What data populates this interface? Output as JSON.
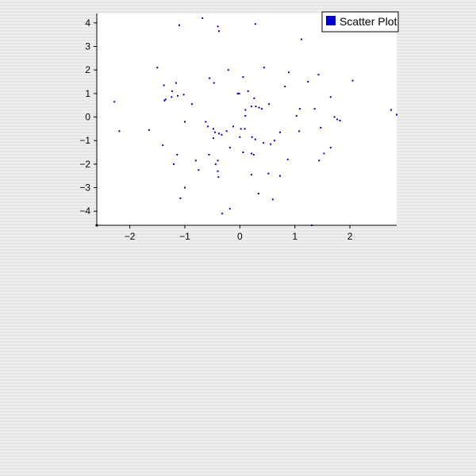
{
  "chart_data": {
    "type": "scatter",
    "title": "",
    "xlabel": "",
    "ylabel": "",
    "xlim": [
      -2.6,
      2.85
    ],
    "ylim": [
      -4.6,
      4.4
    ],
    "xticks": [
      -2,
      -1,
      0,
      1,
      2
    ],
    "yticks": [
      -4,
      -3,
      -2,
      -1,
      0,
      1,
      2,
      3,
      4
    ],
    "xtick_labels": [
      "−2",
      "−1",
      "0",
      "1",
      "2"
    ],
    "ytick_labels": [
      "−4",
      "−3",
      "−2",
      "−1",
      "0",
      "1",
      "2",
      "3",
      "4"
    ],
    "grid": false,
    "legend_position": "top-right",
    "series": [
      {
        "name": "Scatter Plot",
        "color": "#0000cc",
        "x": [
          -0.68,
          -0.4,
          -1.1,
          0.28,
          -0.38,
          1.12,
          -1.5,
          -0.21,
          0.44,
          -0.04,
          0.06,
          -0.55,
          0.89,
          1.43,
          2.05,
          -0.47,
          -1.16,
          1.24,
          -1.38,
          -1.23,
          0.82,
          0.15,
          -0.01,
          0.26,
          -1.13,
          1.65,
          -1.02,
          -1.24,
          -1.37,
          -1.35,
          -2.28,
          -0.87,
          0.21,
          0.35,
          0.53,
          1.09,
          1.36,
          0.1,
          0.1,
          0.4,
          0.29,
          1.03,
          2.75,
          2.85,
          1.72,
          -1.0,
          1.77,
          1.82,
          -0.62,
          1.47,
          -0.58,
          -0.12,
          -1.65,
          -0.48,
          -0.24,
          0.02,
          0.09,
          0.73,
          -0.45,
          -0.38,
          1.08,
          -2.19,
          -0.33,
          0.0,
          -0.48,
          0.22,
          0.28,
          0.63,
          0.43,
          0.56,
          -1.4,
          1.65,
          -0.18,
          -1.14,
          -0.56,
          -0.4,
          0.06,
          0.21,
          0.87,
          1.53,
          1.44,
          0.25,
          -0.44,
          -1.2,
          -0.8,
          -0.75,
          -0.4,
          0.52,
          0.73,
          0.21,
          -0.39,
          -1.0,
          -1.08,
          0.34,
          0.6,
          -0.18,
          -0.32,
          1.31
        ],
        "y": [
          4.2,
          3.85,
          3.9,
          3.95,
          3.65,
          3.3,
          2.1,
          2.0,
          2.1,
          1.0,
          1.7,
          1.65,
          1.9,
          1.8,
          1.55,
          1.45,
          1.45,
          1.5,
          1.35,
          1.1,
          1.3,
          1.1,
          1.0,
          0.8,
          0.9,
          0.85,
          0.95,
          0.85,
          0.7,
          0.75,
          0.65,
          0.55,
          0.45,
          0.4,
          0.55,
          0.35,
          0.35,
          0.3,
          0.05,
          0.35,
          0.45,
          0.05,
          0.3,
          0.1,
          0.0,
          -0.2,
          -0.1,
          -0.15,
          -0.2,
          -0.45,
          -0.4,
          -0.4,
          -0.55,
          -0.5,
          -0.6,
          -0.5,
          -0.5,
          -0.65,
          -0.65,
          -0.7,
          -0.6,
          -0.6,
          -0.75,
          -0.85,
          -0.9,
          -0.85,
          -0.95,
          -1.0,
          -1.1,
          -1.15,
          -1.2,
          -1.3,
          -1.3,
          -1.6,
          -1.6,
          -1.85,
          -1.5,
          -1.55,
          -1.8,
          -1.55,
          -1.85,
          -1.6,
          -2.0,
          -2.0,
          -1.85,
          -2.25,
          -2.3,
          -2.4,
          -2.5,
          -2.45,
          -2.55,
          -3.0,
          -3.45,
          -3.25,
          -3.5,
          -3.9,
          -4.1,
          -4.6
        ]
      }
    ]
  }
}
